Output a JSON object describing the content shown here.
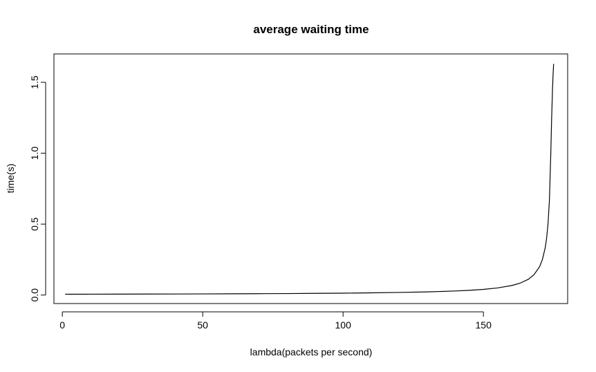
{
  "chart_data": {
    "type": "line",
    "title": "average waiting time",
    "xlabel": "lambda(packets per second)",
    "ylabel": "time(s)",
    "xlim": [
      -3,
      180
    ],
    "ylim": [
      -0.06,
      1.7
    ],
    "x_ticks": [
      0,
      50,
      100,
      150
    ],
    "y_ticks": [
      0.0,
      0.5,
      1.0,
      1.5
    ],
    "x_tick_labels": [
      "0",
      "50",
      "100",
      "150"
    ],
    "y_tick_labels": [
      "0.0",
      "0.5",
      "1.0",
      "1.5"
    ],
    "grid": false,
    "line_color": "#000000",
    "series": [
      {
        "x": [
          1,
          10,
          20,
          30,
          40,
          50,
          60,
          70,
          80,
          90,
          100,
          110,
          120,
          130,
          140,
          145,
          150,
          155,
          160,
          163,
          166,
          168,
          170,
          171,
          172,
          172.5,
          173,
          173.5,
          174,
          174.3,
          174.6,
          174.8,
          175
        ],
        "y": [
          0.0057,
          0.006,
          0.0064,
          0.0069,
          0.0074,
          0.008,
          0.0087,
          0.0095,
          0.0105,
          0.0118,
          0.0133,
          0.0154,
          0.0182,
          0.0222,
          0.0286,
          0.0333,
          0.04,
          0.05,
          0.0667,
          0.0833,
          0.111,
          0.143,
          0.2,
          0.25,
          0.333,
          0.4,
          0.5,
          0.667,
          1.0,
          1.25,
          1.45,
          1.55,
          1.63
        ]
      }
    ]
  }
}
